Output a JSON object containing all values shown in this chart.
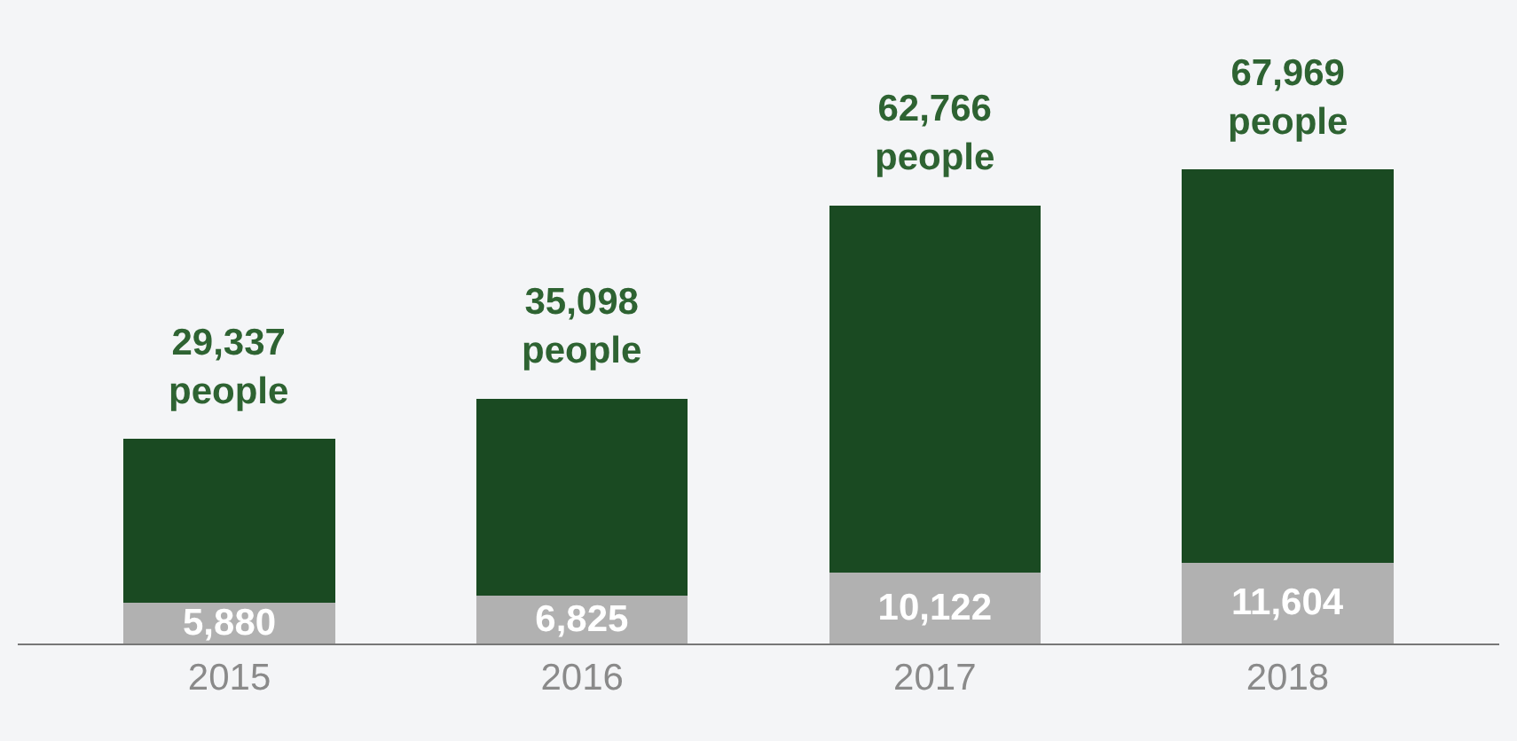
{
  "chart_data": {
    "type": "bar",
    "stacked": true,
    "categories": [
      "2015",
      "2016",
      "2017",
      "2018"
    ],
    "series": [
      {
        "color": "#b1b1b1",
        "values": [
          5880,
          6825,
          10122,
          11604
        ],
        "value_labels": [
          "5,880",
          "6,825",
          "10,122",
          "11,604"
        ]
      },
      {
        "color": "#1a4a22",
        "values": [
          23457,
          28273,
          52644,
          56365
        ]
      }
    ],
    "totals": [
      "29,337 people",
      "35,098 people",
      "62,766 people",
      "67,969 people"
    ],
    "grid": false
  }
}
